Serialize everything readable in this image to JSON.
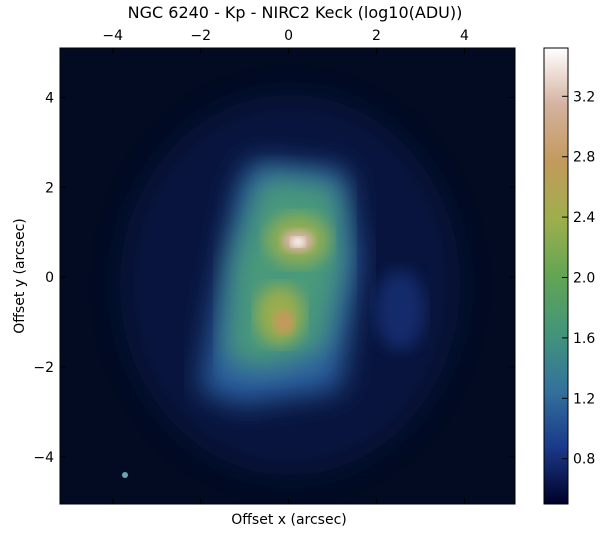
{
  "chart_data": {
    "type": "image",
    "title": "NGC 6240 - Kp - NIRC2 Keck (log10(ADU))",
    "x_label": "Offset x (arcsec)",
    "y_label": "Offset y (arcsec)",
    "xlim": [
      -5.2,
      5.15
    ],
    "ylim": [
      -5.05,
      5.1
    ],
    "xticks": [
      {
        "value": -4,
        "label": "−4"
      },
      {
        "value": -2,
        "label": "−2"
      },
      0,
      2,
      4
    ],
    "yticks": [
      {
        "value": -4,
        "label": "−4"
      },
      {
        "value": -2,
        "label": "−2"
      },
      0,
      2,
      4
    ],
    "colorbar": {
      "lim": [
        0.5,
        3.52
      ],
      "ticks": [
        0.8,
        1.2,
        1.6,
        {
          "value": 2.0,
          "label": "2.0"
        },
        2.4,
        2.8,
        3.2
      ],
      "colormap": [
        "#000028",
        "#1a3a8a",
        "#33729c",
        "#43957a",
        "#62a553",
        "#9fae4c",
        "#c29a5c",
        "#d4b2a0",
        "#ffffff"
      ]
    }
  }
}
